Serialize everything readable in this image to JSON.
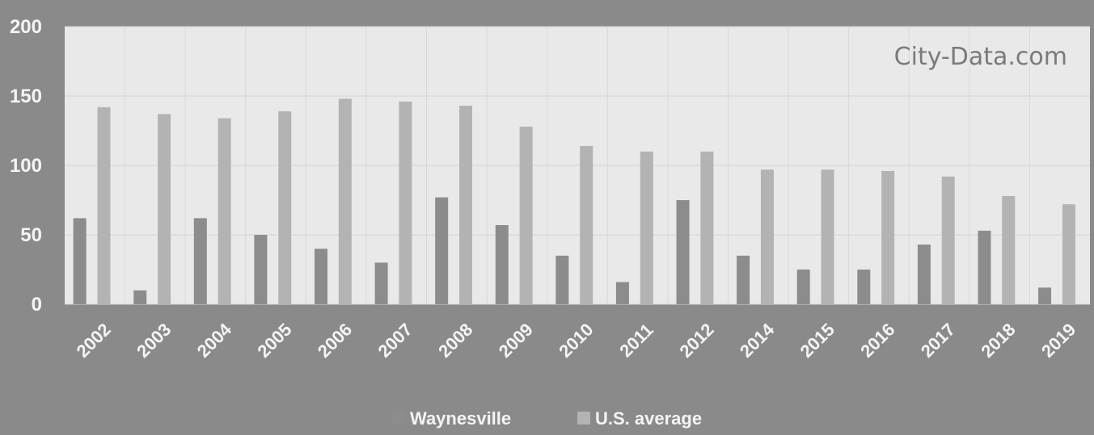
{
  "watermark": "City-Data.com",
  "colors": {
    "background": "#8a8a8a",
    "plot_area": "#e9e9e9",
    "waynesville_bar": "#8c8c8c",
    "us_bar": "#b3b3b3",
    "text": "#f4f4f4"
  },
  "chart_data": {
    "type": "bar",
    "categories": [
      "2002",
      "2003",
      "2004",
      "2005",
      "2006",
      "2007",
      "2008",
      "2009",
      "2010",
      "2011",
      "2012",
      "2014",
      "2015",
      "2016",
      "2017",
      "2018",
      "2019"
    ],
    "series": [
      {
        "name": "Waynesville",
        "values": [
          62,
          10,
          62,
          50,
          40,
          30,
          77,
          57,
          35,
          16,
          75,
          35,
          25,
          25,
          43,
          53,
          12
        ]
      },
      {
        "name": "U.S. average",
        "values": [
          142,
          137,
          134,
          139,
          148,
          146,
          143,
          128,
          114,
          110,
          110,
          97,
          97,
          96,
          92,
          78,
          72
        ]
      }
    ],
    "ylim": [
      0,
      200
    ],
    "yticks": [
      0,
      50,
      100,
      150,
      200
    ],
    "grid": true,
    "legend_position": "bottom"
  }
}
